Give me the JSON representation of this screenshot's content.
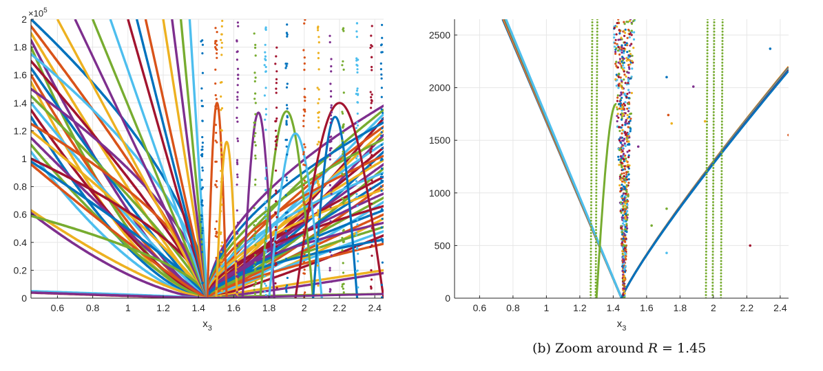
{
  "colors": [
    "#0072BD",
    "#D95319",
    "#EDB120",
    "#7E2F8E",
    "#77AC30",
    "#4DBEEE",
    "#A2142F"
  ],
  "caption": {
    "prefix": "(b) Zoom around ",
    "variable": "R",
    "relation": " = 1.45"
  },
  "chart_data": [
    {
      "type": "scatter",
      "title": "",
      "xlabel": "x",
      "xlabel_sub": "3",
      "ylabel": "",
      "y_exponent_label": "×10",
      "y_exponent_power": "5",
      "xlim": [
        0.45,
        2.45
      ],
      "ylim": [
        0,
        200000
      ],
      "xticks": [
        0.6,
        0.8,
        1,
        1.2,
        1.4,
        1.6,
        1.8,
        2,
        2.2,
        2.4
      ],
      "xtick_labels": [
        "0.6",
        "0.8",
        "1",
        "1.2",
        "1.4",
        "1.6",
        "1.8",
        "2",
        "2.2",
        "2.4"
      ],
      "yticks": [
        0,
        20000,
        40000,
        60000,
        80000,
        100000,
        120000,
        140000,
        160000,
        180000,
        200000
      ],
      "ytick_labels": [
        "0",
        "0.2",
        "0.4",
        "0.6",
        "0.8",
        "1",
        "1.2",
        "1.4",
        "1.6",
        "1.8",
        "2"
      ],
      "grid": true,
      "converge_x": 1.45,
      "series": [
        {
          "kind": "left-fan",
          "left_values": [
            200000,
            195000,
            190000,
            185000,
            180000,
            175000,
            170000,
            165000,
            160000,
            155000,
            150000,
            145000,
            140000,
            135000,
            130000,
            125000,
            120000,
            115000,
            110000,
            105000,
            100000,
            98000,
            96000,
            63000,
            61000,
            59000,
            5000,
            4000
          ]
        },
        {
          "kind": "right-fan",
          "right_values": [
            138000,
            135000,
            132000,
            129000,
            126000,
            123000,
            120000,
            117000,
            114000,
            111000,
            108000,
            105000,
            102000,
            99000,
            96000,
            93000,
            90000,
            87000,
            84000,
            81000,
            78000,
            75000,
            72000,
            69000,
            66000,
            63000,
            60000,
            57000,
            54000,
            51000,
            48000,
            45000,
            42000,
            39000,
            20000,
            18000,
            3000
          ]
        },
        {
          "kind": "left-steep",
          "points": [
            [
              0.6,
              200000
            ],
            [
              0.7,
              200000
            ],
            [
              0.8,
              200000
            ],
            [
              0.9,
              200000
            ],
            [
              1.0,
              200000
            ],
            [
              1.05,
              200000
            ],
            [
              1.1,
              200000
            ],
            [
              1.2,
              200000
            ],
            [
              1.25,
              200000
            ],
            [
              1.3,
              200000
            ],
            [
              1.35,
              200000
            ]
          ]
        },
        {
          "kind": "arches",
          "arches": [
            {
              "x0": 1.45,
              "x1": 1.56,
              "peak": 140000
            },
            {
              "x0": 1.5,
              "x1": 1.62,
              "peak": 112000
            },
            {
              "x0": 1.65,
              "x1": 1.83,
              "peak": 133000
            },
            {
              "x0": 1.75,
              "x1": 2.05,
              "peak": 134000
            },
            {
              "x0": 1.8,
              "x1": 2.1,
              "peak": 118000
            },
            {
              "x0": 1.95,
              "x1": 2.45,
              "peak": 140000
            },
            {
              "x0": 2.05,
              "x1": 2.3,
              "peak": 130000
            }
          ]
        }
      ]
    },
    {
      "type": "scatter",
      "title": "",
      "xlabel": "x",
      "xlabel_sub": "3",
      "ylabel": "",
      "xlim": [
        0.45,
        2.45
      ],
      "ylim": [
        0,
        2650
      ],
      "xticks": [
        0.6,
        0.8,
        1,
        1.2,
        1.4,
        1.6,
        1.8,
        2,
        2.2,
        2.4
      ],
      "xtick_labels": [
        "0.6",
        "0.8",
        "1",
        "1.2",
        "1.4",
        "1.6",
        "1.8",
        "2",
        "2.2",
        "2.4"
      ],
      "yticks": [
        0,
        500,
        1000,
        1500,
        2000,
        2500
      ],
      "ytick_labels": [
        "0",
        "500",
        "1000",
        "1500",
        "2000",
        "2500"
      ],
      "grid": true,
      "converge_x": 1.45,
      "series": [
        {
          "kind": "v-shape",
          "left_top": [
            0.75,
            2650
          ],
          "vertex": [
            1.45,
            0
          ],
          "right_end": [
            2.45,
            2200
          ]
        },
        {
          "kind": "hump",
          "x0": 1.3,
          "x1": 1.42,
          "peak": 1940
        },
        {
          "kind": "vertical-dotted",
          "xs": [
            1.27,
            1.3,
            1.96,
            2.0,
            2.05
          ]
        },
        {
          "kind": "dense-column",
          "x_range": [
            1.41,
            1.53
          ]
        }
      ]
    }
  ]
}
